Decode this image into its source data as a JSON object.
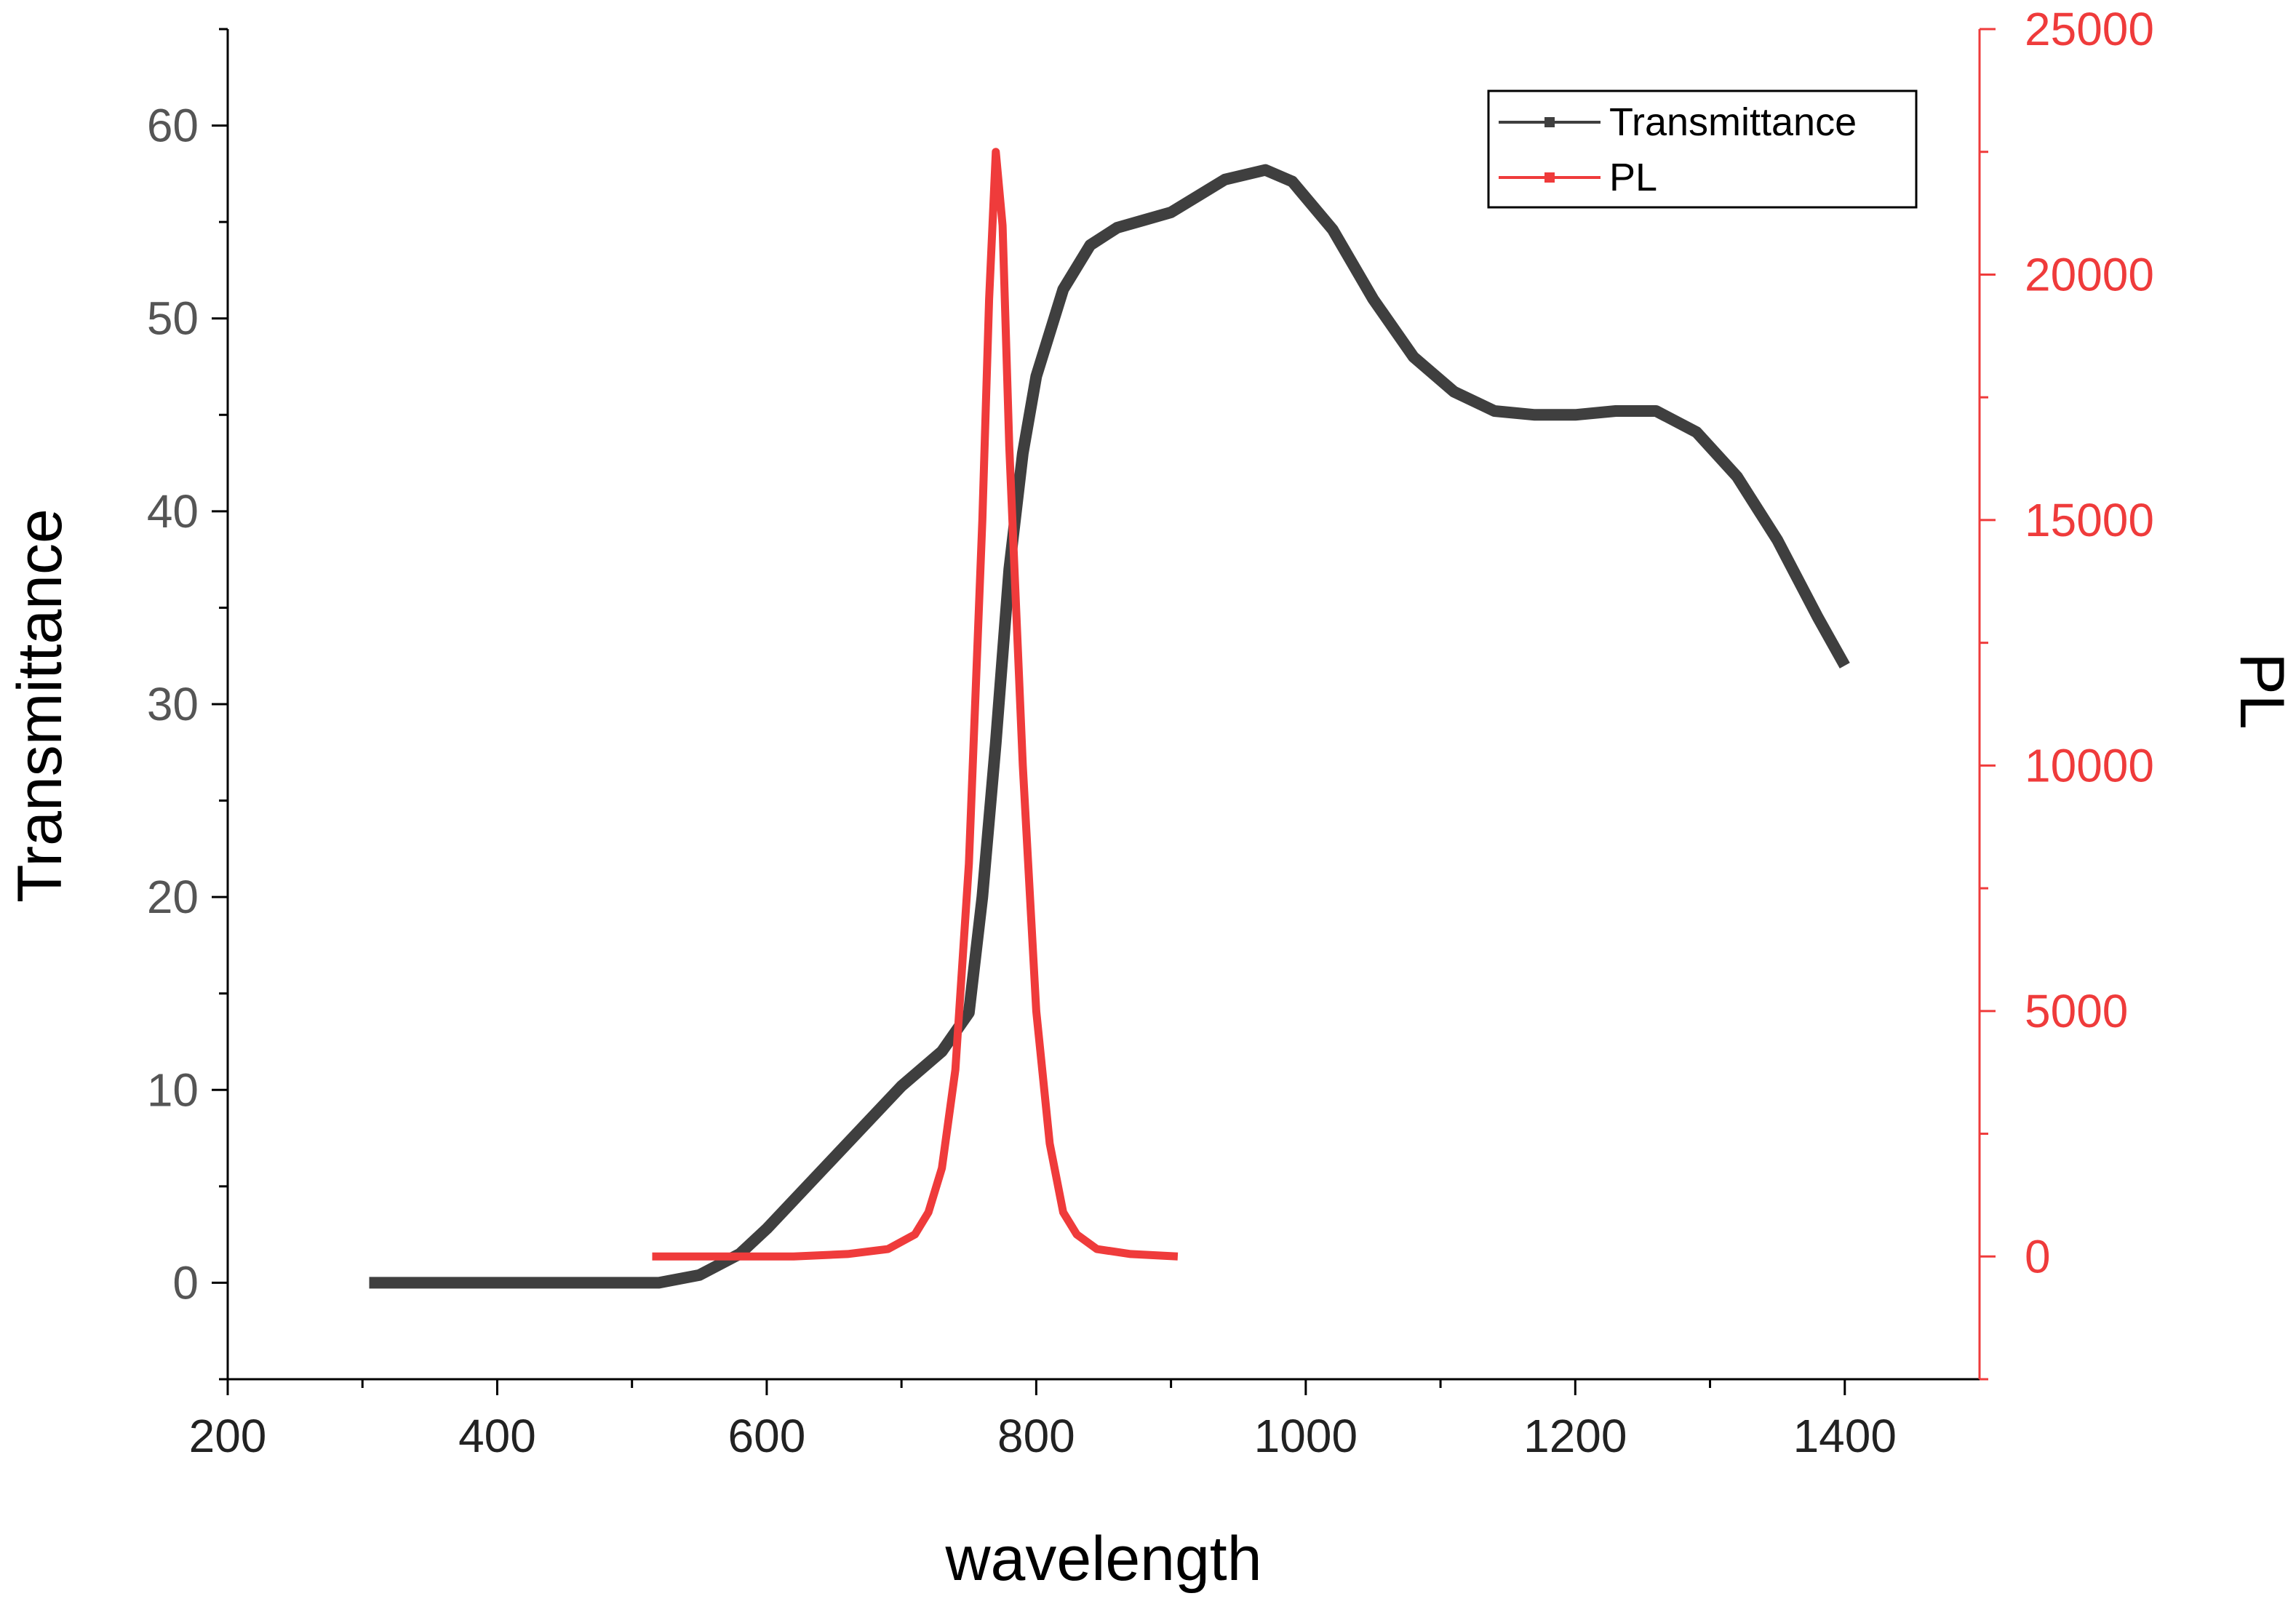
{
  "chart_data": {
    "type": "line",
    "title": "",
    "xlabel": "wavelength",
    "ylabel_left": "Transmittance",
    "ylabel_right": "PL",
    "xlim": [
      200,
      1500
    ],
    "ylim_left": [
      -5,
      65
    ],
    "ylim_right": [
      -2500,
      25000
    ],
    "x_ticks": [
      "200",
      "400",
      "600",
      "800",
      "1000",
      "1200",
      "1400"
    ],
    "y_left_ticks": [
      "0",
      "10",
      "20",
      "30",
      "40",
      "50",
      "60"
    ],
    "y_right_ticks": [
      "0",
      "5000",
      "10000",
      "15000",
      "20000",
      "25000"
    ],
    "legend_position": "top-right",
    "colors": {
      "transmittance": "#3f3f3f",
      "pl": "#ef3b3b",
      "right_axis": "#ef3b3b",
      "axes": "#000000"
    },
    "series": [
      {
        "name": "Transmittance",
        "axis": "left",
        "x": [
          305,
          340,
          360,
          400,
          450,
          500,
          520,
          550,
          580,
          600,
          650,
          700,
          730,
          750,
          760,
          770,
          780,
          790,
          800,
          820,
          840,
          860,
          880,
          900,
          940,
          970,
          990,
          1020,
          1050,
          1080,
          1110,
          1140,
          1170,
          1200,
          1230,
          1260,
          1290,
          1320,
          1350,
          1380,
          1400
        ],
        "values": [
          0,
          0,
          0,
          0,
          0,
          0,
          0,
          0.4,
          1.5,
          2.8,
          6.5,
          10.2,
          12,
          14,
          20,
          28,
          37,
          43,
          47,
          51.5,
          53.8,
          54.7,
          55.1,
          55.5,
          57.2,
          57.7,
          57.1,
          54.6,
          51,
          48,
          46.2,
          45.2,
          45.0,
          45.0,
          45.2,
          45.2,
          44.1,
          41.8,
          38.5,
          34.5,
          32
        ]
      },
      {
        "name": "PL",
        "axis": "right",
        "x": [
          515,
          540,
          580,
          620,
          660,
          690,
          710,
          720,
          730,
          740,
          750,
          760,
          765,
          770,
          775,
          780,
          790,
          800,
          810,
          820,
          830,
          845,
          870,
          905
        ],
        "values": [
          0,
          0,
          0,
          0,
          50,
          150,
          450,
          900,
          1800,
          3800,
          8000,
          15000,
          19500,
          22500,
          21000,
          16500,
          10000,
          5000,
          2300,
          900,
          450,
          150,
          50,
          0
        ]
      }
    ]
  }
}
